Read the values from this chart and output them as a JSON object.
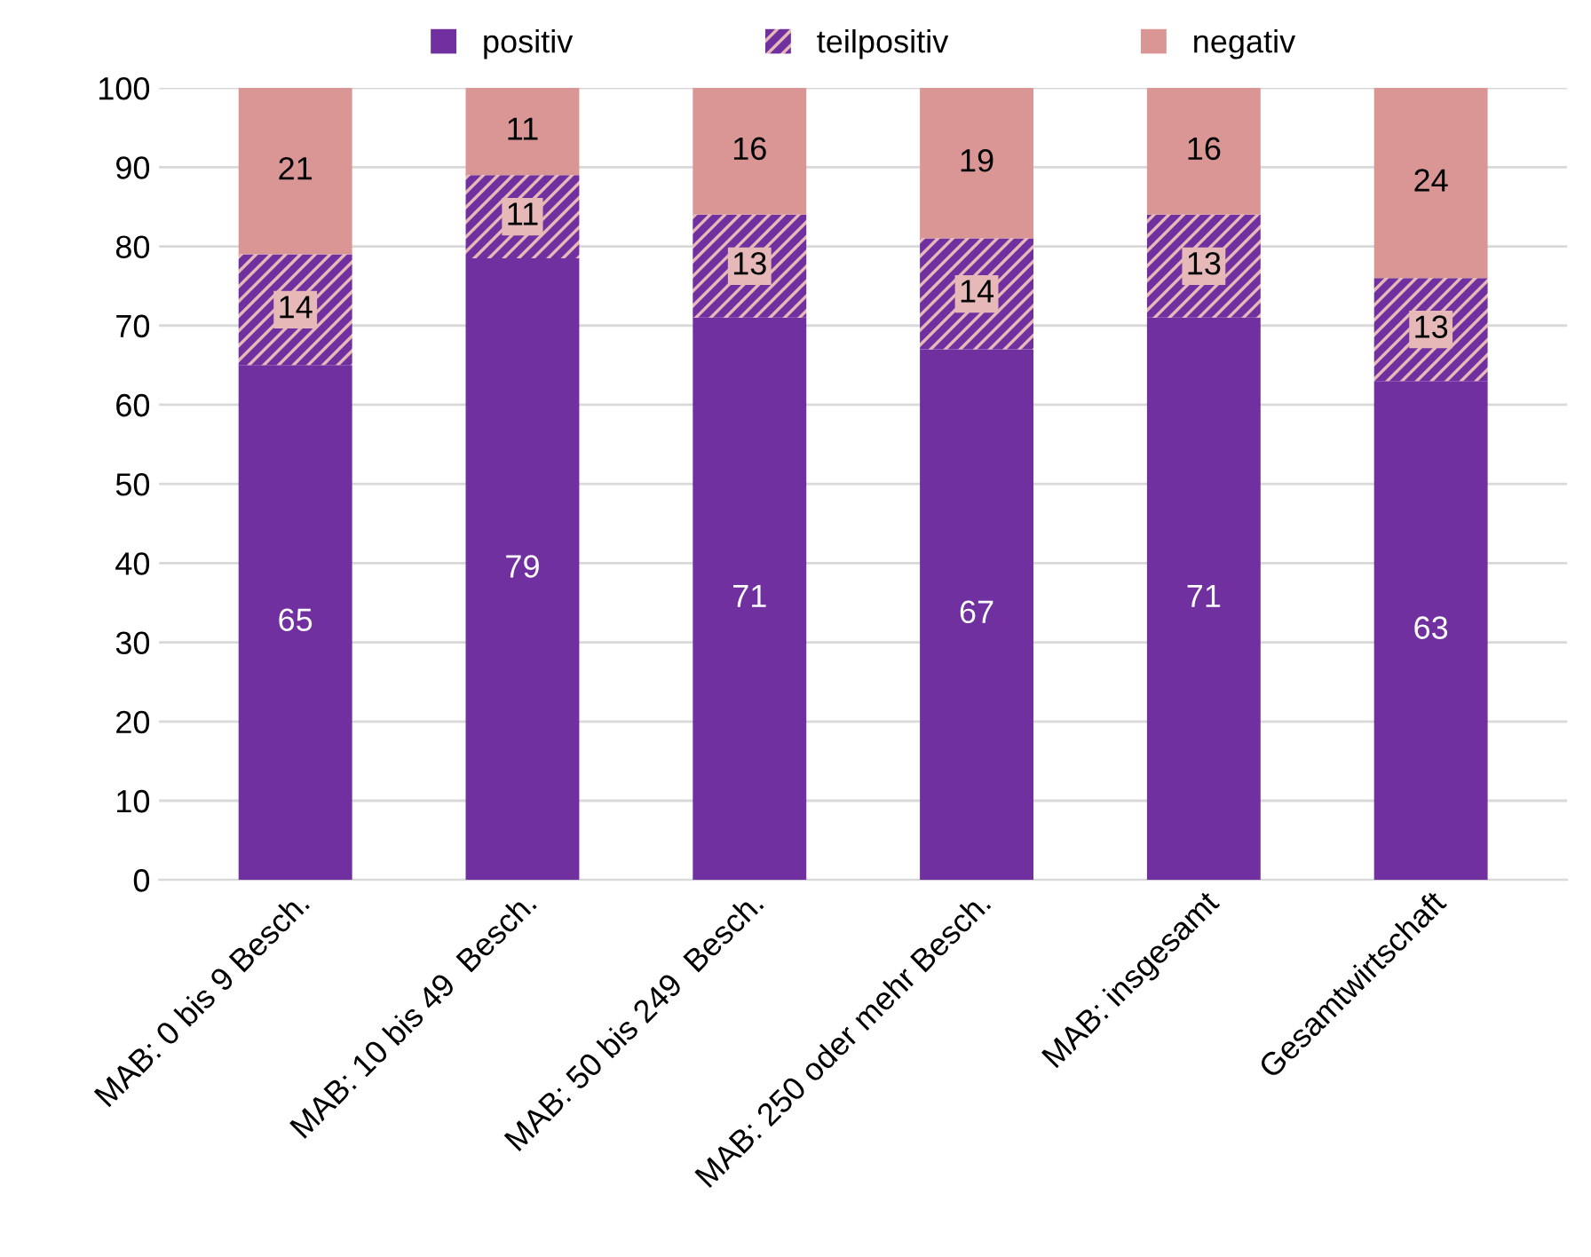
{
  "chart_data": {
    "type": "bar",
    "stacked": true,
    "categories": [
      "MAB: 0 bis 9 Besch.",
      "MAB: 10 bis 49  Besch.",
      "MAB: 50 bis 249  Besch.",
      "MAB: 250 oder mehr Besch.",
      "MAB: insgesamt",
      "Gesamtwirtschaft"
    ],
    "series": [
      {
        "name": "positiv",
        "color": "#7030a0",
        "values": [
          65,
          78.5,
          71,
          67,
          71,
          63
        ],
        "value_labels": [
          "65",
          "79",
          "71",
          "67",
          "71",
          "63"
        ]
      },
      {
        "name": "teilpositiv",
        "color": "#e6b9b8",
        "values": [
          14,
          10.5,
          13,
          14,
          13,
          13
        ],
        "value_labels": [
          "14",
          "11",
          "13",
          "14",
          "13",
          "13"
        ]
      },
      {
        "name": "negativ",
        "color": "#da9694",
        "values": [
          21,
          11,
          16,
          19,
          16,
          24
        ],
        "value_labels": [
          "21",
          "11",
          "16",
          "19",
          "16",
          "24"
        ]
      }
    ],
    "ylim": [
      0,
      100
    ],
    "yticks": [
      0,
      10,
      20,
      30,
      40,
      50,
      60,
      70,
      80,
      90,
      100
    ],
    "grid": "y",
    "legend": "top"
  }
}
